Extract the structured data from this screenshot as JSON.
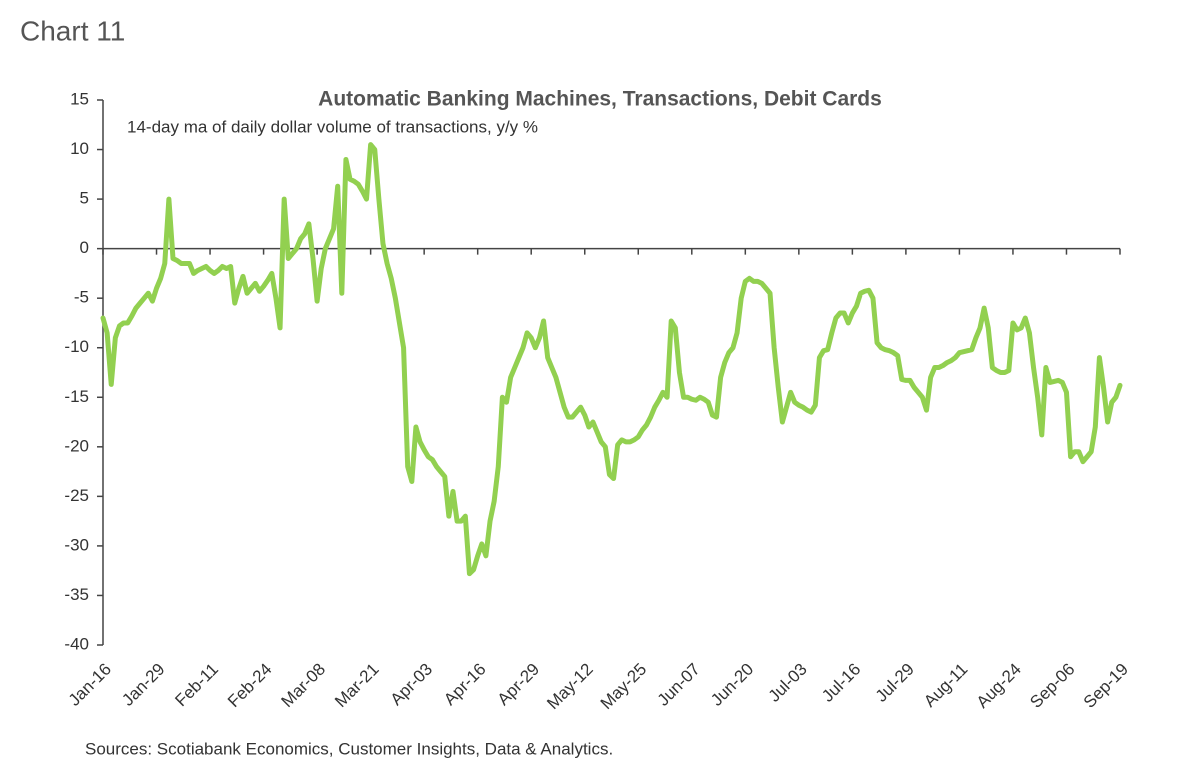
{
  "header": "Chart 11",
  "chart_data": {
    "type": "line",
    "title": "Automatic Banking Machines, Transactions, Debit Cards",
    "subtitle": "14-day ma of daily dollar volume of transactions, y/y %",
    "source": "Sources: Scotiabank Economics, Customer Insights, Data & Analytics.",
    "color": "#92d050",
    "categories": [
      "Jan-16",
      null,
      null,
      null,
      null,
      null,
      null,
      null,
      null,
      null,
      null,
      null,
      null,
      "Jan-29",
      null,
      null,
      null,
      null,
      null,
      null,
      null,
      null,
      null,
      null,
      null,
      null,
      "Feb-11",
      null,
      null,
      null,
      null,
      null,
      null,
      null,
      null,
      null,
      null,
      null,
      null,
      "Feb-24",
      null,
      null,
      null,
      null,
      null,
      null,
      null,
      null,
      null,
      null,
      null,
      null,
      "Mar-08",
      null,
      null,
      null,
      null,
      null,
      null,
      null,
      null,
      null,
      null,
      null,
      null,
      "Mar-21",
      null,
      null,
      null,
      null,
      null,
      null,
      null,
      null,
      null,
      null,
      null,
      null,
      "Apr-03",
      null,
      null,
      null,
      null,
      null,
      null,
      null,
      null,
      null,
      null,
      null,
      null,
      "Apr-16",
      null,
      null,
      null,
      null,
      null,
      null,
      null,
      null,
      null,
      null,
      null,
      null,
      "Apr-29",
      null,
      null,
      null,
      null,
      null,
      null,
      null,
      null,
      null,
      null,
      null,
      null,
      "May-12",
      null,
      null,
      null,
      null,
      null,
      null,
      null,
      null,
      null,
      null,
      null,
      null,
      "May-25",
      null,
      null,
      null,
      null,
      null,
      null,
      null,
      null,
      null,
      null,
      null,
      null,
      "Jun-07",
      null,
      null,
      null,
      null,
      null,
      null,
      null,
      null,
      null,
      null,
      null,
      null,
      "Jun-20",
      null,
      null,
      null,
      null,
      null,
      null,
      null,
      null,
      null,
      null,
      null,
      null,
      "Jul-03",
      null,
      null,
      null,
      null,
      null,
      null,
      null,
      null,
      null,
      null,
      null,
      null,
      "Jul-16",
      null,
      null,
      null,
      null,
      null,
      null,
      null,
      null,
      null,
      null,
      null,
      null,
      "Jul-29",
      null,
      null,
      null,
      null,
      null,
      null,
      null,
      null,
      null,
      null,
      null,
      null,
      "Aug-11",
      null,
      null,
      null,
      null,
      null,
      null,
      null,
      null,
      null,
      null,
      null,
      null,
      "Aug-24",
      null,
      null,
      null,
      null,
      null,
      null,
      null,
      null,
      null,
      null,
      null,
      null,
      "Sep-06",
      null,
      null,
      null,
      null,
      null,
      null,
      null,
      null,
      null,
      null,
      null,
      null,
      "Sep-19"
    ],
    "values": [
      -7,
      -8.5,
      -13.7,
      -9,
      -7.8,
      -7.5,
      -7.5,
      -6.8,
      -6,
      -5.5,
      -5,
      -4.5,
      -5.3,
      -4,
      -3,
      -1.5,
      5,
      -1,
      -1.2,
      -1.5,
      -1.5,
      -1.5,
      -2.5,
      -2.2,
      -2,
      -1.8,
      -2.2,
      -2.5,
      -2.2,
      -1.8,
      -2,
      -1.8,
      -5.5,
      -4,
      -2.8,
      -4.5,
      -4,
      -3.5,
      -4.3,
      -3.8,
      -3.2,
      -2.5,
      -5,
      -8,
      5,
      -1,
      -0.5,
      0,
      1,
      1.5,
      2.5,
      -1,
      -5.3,
      -2,
      0,
      1,
      2,
      6.3,
      -4.5,
      9,
      7,
      6.8,
      6.5,
      5.8,
      5,
      10.5,
      10,
      5,
      0.5,
      -1.5,
      -3,
      -5,
      -7.5,
      -10,
      -22,
      -23.5,
      -18,
      -19.5,
      -20.3,
      -21,
      -21.3,
      -22,
      -22.5,
      -23,
      -27,
      -24.5,
      -27.5,
      -27.5,
      -27,
      -32.8,
      -32.4,
      -31,
      -29.8,
      -31,
      -27.5,
      -25.5,
      -22,
      -15,
      -15.5,
      -13,
      -12,
      -11,
      -10,
      -8.5,
      -9,
      -10,
      -9,
      -7.3,
      -11,
      -12,
      -13,
      -14.5,
      -16,
      -17,
      -17,
      -16.5,
      -16,
      -16.8,
      -18,
      -17.5,
      -18.5,
      -19.5,
      -20,
      -22.8,
      -23.2,
      -19.8,
      -19.3,
      -19.5,
      -19.5,
      -19.3,
      -19,
      -18.3,
      -17.8,
      -17,
      -16,
      -15.3,
      -14.5,
      -15,
      -7.3,
      -8,
      -12.5,
      -15,
      -15,
      -15.2,
      -15.3,
      -15,
      -15.2,
      -15.5,
      -16.8,
      -17,
      -13,
      -11.5,
      -10.5,
      -10,
      -8.5,
      -5,
      -3.3,
      -3,
      -3.3,
      -3.3,
      -3.5,
      -4,
      -4.5,
      -10,
      -14,
      -17.5,
      -16,
      -14.5,
      -15.5,
      -15.8,
      -16,
      -16.3,
      -16.5,
      -15.8,
      -11,
      -10.3,
      -10.2,
      -8.5,
      -7,
      -6.5,
      -6.5,
      -7.5,
      -6.5,
      -5.8,
      -4.5,
      -4.3,
      -4.2,
      -5,
      -9.5,
      -10,
      -10.2,
      -10.3,
      -10.5,
      -10.8,
      -13.2,
      -13.3,
      -13.3,
      -14,
      -14.5,
      -15,
      -16.3,
      -13,
      -12,
      -12,
      -11.8,
      -11.5,
      -11.3,
      -11,
      -10.5,
      -10.4,
      -10.3,
      -10.2,
      -9,
      -8,
      -6,
      -8,
      -12,
      -12.3,
      -12.5,
      -12.5,
      -12.3,
      -7.5,
      -8.2,
      -8,
      -7,
      -8.5,
      -12,
      -15,
      -18.8,
      -12,
      -13.5,
      -13.4,
      -13.3,
      -13.5,
      -14.5,
      -21,
      -20.5,
      -20.5,
      -21.5,
      -21,
      -20.5,
      -18,
      -11,
      -14,
      -17.5,
      -15.5,
      -15,
      -13.8
    ],
    "ylim": [
      -40,
      15
    ],
    "yticks": [
      15,
      10,
      5,
      0,
      -5,
      -10,
      -15,
      -20,
      -25,
      -30,
      -35,
      -40
    ]
  }
}
